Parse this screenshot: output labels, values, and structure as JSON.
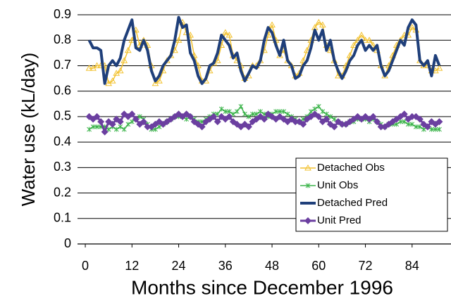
{
  "chart_data": {
    "type": "line",
    "xlabel": "Months since December 1996",
    "ylabel": "Water use (kL/day)",
    "x": [
      1,
      2,
      3,
      4,
      5,
      6,
      7,
      8,
      9,
      10,
      11,
      12,
      13,
      14,
      15,
      16,
      17,
      18,
      19,
      20,
      21,
      22,
      23,
      24,
      25,
      26,
      27,
      28,
      29,
      30,
      31,
      32,
      33,
      34,
      35,
      36,
      37,
      38,
      39,
      40,
      41,
      42,
      43,
      44,
      45,
      46,
      47,
      48,
      49,
      50,
      51,
      52,
      53,
      54,
      55,
      56,
      57,
      58,
      59,
      60,
      61,
      62,
      63,
      64,
      65,
      66,
      67,
      68,
      69,
      70,
      71,
      72,
      73,
      74,
      75,
      76,
      77,
      78,
      79,
      80,
      81,
      82,
      83,
      84,
      85,
      86,
      87,
      88,
      89,
      90,
      91
    ],
    "series": [
      {
        "name": "Detached Obs",
        "color": "#f2c12e",
        "marker": "triangle",
        "width": 1.5,
        "values": [
          0.69,
          0.69,
          0.7,
          0.7,
          0.7,
          0.63,
          0.64,
          0.67,
          0.68,
          0.72,
          0.76,
          0.8,
          0.84,
          0.78,
          0.8,
          0.78,
          0.7,
          0.63,
          0.64,
          0.68,
          0.72,
          0.74,
          0.76,
          0.8,
          0.87,
          0.83,
          0.82,
          0.74,
          0.7,
          0.64,
          0.64,
          0.68,
          0.71,
          0.72,
          0.78,
          0.83,
          0.82,
          0.74,
          0.72,
          0.7,
          0.65,
          0.66,
          0.7,
          0.7,
          0.72,
          0.76,
          0.82,
          0.86,
          0.8,
          0.74,
          0.76,
          0.72,
          0.7,
          0.66,
          0.67,
          0.72,
          0.76,
          0.8,
          0.85,
          0.87,
          0.86,
          0.78,
          0.76,
          0.72,
          0.66,
          0.66,
          0.7,
          0.74,
          0.78,
          0.8,
          0.82,
          0.8,
          0.8,
          0.78,
          0.76,
          0.7,
          0.66,
          0.7,
          0.74,
          0.78,
          0.8,
          0.82,
          0.82,
          0.85,
          0.84,
          0.72,
          0.7,
          0.7,
          0.68,
          0.68,
          0.69
        ]
      },
      {
        "name": "Unit Obs",
        "color": "#3cb44b",
        "marker": "star",
        "width": 1.5,
        "values": [
          0.45,
          0.46,
          0.46,
          0.46,
          0.46,
          0.45,
          0.46,
          0.45,
          0.46,
          0.45,
          0.47,
          0.48,
          0.49,
          0.5,
          0.49,
          0.47,
          0.45,
          0.45,
          0.46,
          0.47,
          0.48,
          0.49,
          0.5,
          0.5,
          0.5,
          0.49,
          0.5,
          0.49,
          0.48,
          0.48,
          0.49,
          0.5,
          0.51,
          0.51,
          0.53,
          0.52,
          0.52,
          0.51,
          0.52,
          0.54,
          0.51,
          0.5,
          0.51,
          0.51,
          0.52,
          0.51,
          0.5,
          0.51,
          0.52,
          0.52,
          0.52,
          0.51,
          0.5,
          0.49,
          0.48,
          0.49,
          0.5,
          0.52,
          0.53,
          0.54,
          0.52,
          0.51,
          0.5,
          0.49,
          0.48,
          0.47,
          0.47,
          0.48,
          0.48,
          0.49,
          0.49,
          0.49,
          0.48,
          0.49,
          0.48,
          0.47,
          0.46,
          0.47,
          0.47,
          0.47,
          0.48,
          0.48,
          0.47,
          0.47,
          0.46,
          0.46,
          0.45,
          0.46,
          0.45,
          0.45,
          0.45
        ]
      },
      {
        "name": "Detached Pred",
        "color": "#1f3f7a",
        "marker": "none",
        "width": 4,
        "values": [
          0.8,
          0.77,
          0.77,
          0.76,
          0.63,
          0.7,
          0.72,
          0.7,
          0.73,
          0.8,
          0.84,
          0.88,
          0.77,
          0.76,
          0.8,
          0.76,
          0.68,
          0.64,
          0.66,
          0.7,
          0.72,
          0.74,
          0.8,
          0.89,
          0.85,
          0.86,
          0.75,
          0.72,
          0.66,
          0.63,
          0.65,
          0.7,
          0.71,
          0.75,
          0.82,
          0.8,
          0.78,
          0.73,
          0.75,
          0.68,
          0.64,
          0.67,
          0.7,
          0.69,
          0.72,
          0.8,
          0.85,
          0.83,
          0.78,
          0.74,
          0.8,
          0.72,
          0.7,
          0.65,
          0.66,
          0.7,
          0.72,
          0.77,
          0.84,
          0.8,
          0.84,
          0.76,
          0.8,
          0.72,
          0.68,
          0.65,
          0.68,
          0.72,
          0.74,
          0.78,
          0.8,
          0.76,
          0.78,
          0.76,
          0.78,
          0.7,
          0.66,
          0.68,
          0.72,
          0.76,
          0.8,
          0.78,
          0.85,
          0.88,
          0.86,
          0.72,
          0.7,
          0.72,
          0.66,
          0.74,
          0.7
        ]
      },
      {
        "name": "Unit Pred",
        "color": "#6b3fa0",
        "marker": "diamond",
        "width": 3,
        "values": [
          0.5,
          0.49,
          0.5,
          0.48,
          0.44,
          0.48,
          0.47,
          0.49,
          0.48,
          0.51,
          0.5,
          0.51,
          0.49,
          0.47,
          0.48,
          0.46,
          0.46,
          0.47,
          0.48,
          0.47,
          0.48,
          0.49,
          0.5,
          0.51,
          0.5,
          0.51,
          0.5,
          0.48,
          0.47,
          0.46,
          0.48,
          0.49,
          0.5,
          0.48,
          0.5,
          0.49,
          0.5,
          0.48,
          0.47,
          0.46,
          0.47,
          0.46,
          0.48,
          0.49,
          0.5,
          0.49,
          0.51,
          0.5,
          0.49,
          0.5,
          0.49,
          0.48,
          0.49,
          0.48,
          0.48,
          0.47,
          0.49,
          0.5,
          0.51,
          0.5,
          0.48,
          0.49,
          0.47,
          0.46,
          0.48,
          0.47,
          0.47,
          0.48,
          0.49,
          0.5,
          0.49,
          0.5,
          0.49,
          0.5,
          0.48,
          0.46,
          0.46,
          0.47,
          0.48,
          0.49,
          0.5,
          0.51,
          0.49,
          0.5,
          0.5,
          0.49,
          0.47,
          0.46,
          0.48,
          0.47,
          0.48
        ]
      }
    ],
    "xlim": [
      -2,
      94
    ],
    "xticks": [
      0,
      12,
      24,
      36,
      48,
      60,
      72,
      84
    ],
    "ylim": [
      0,
      0.9
    ],
    "yticks": [
      0,
      0.1,
      0.2,
      0.3,
      0.4,
      0.5,
      0.6,
      0.7,
      0.8,
      0.9
    ],
    "grid": true,
    "legend": "lower right"
  }
}
